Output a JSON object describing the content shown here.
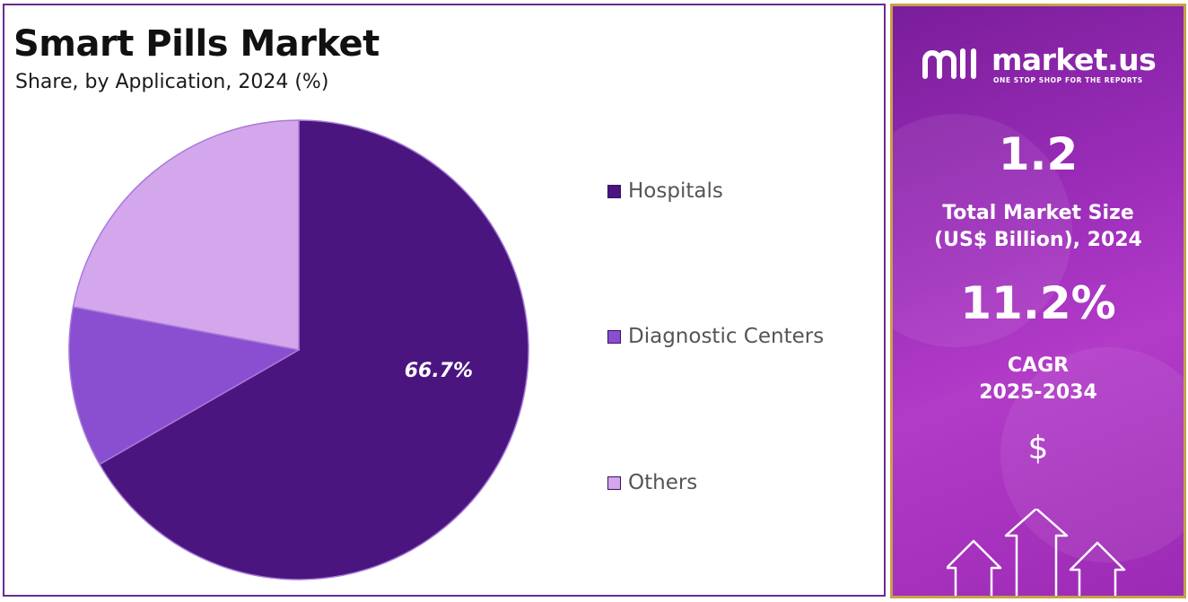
{
  "chart_data": {
    "type": "pie",
    "title": "Smart Pills Market",
    "subtitle": "Share, by Application, 2024 (%)",
    "categories": [
      "Hospitals",
      "Diagnostic Centers",
      "Others"
    ],
    "values": [
      66.7,
      11.3,
      22.0
    ],
    "colors": [
      "#4b1580",
      "#8a4fd0",
      "#d4a6ec"
    ],
    "data_labels": [
      "66.7%",
      "",
      ""
    ],
    "legend_position": "right",
    "start_angle": "12 o'clock, clockwise"
  },
  "side_panel": {
    "brand_name": "market.us",
    "brand_tagline": "ONE STOP SHOP FOR THE REPORTS",
    "market_size_value": "1.2",
    "market_size_label_line1": "Total Market Size",
    "market_size_label_line2": "(US$ Billion), 2024",
    "cagr_value": "11.2%",
    "cagr_label_line1": "CAGR",
    "cagr_label_line2": "2025-2034",
    "currency_symbol": "$",
    "decor_icons": [
      "dollar-icon",
      "up-arrow-icon"
    ]
  }
}
